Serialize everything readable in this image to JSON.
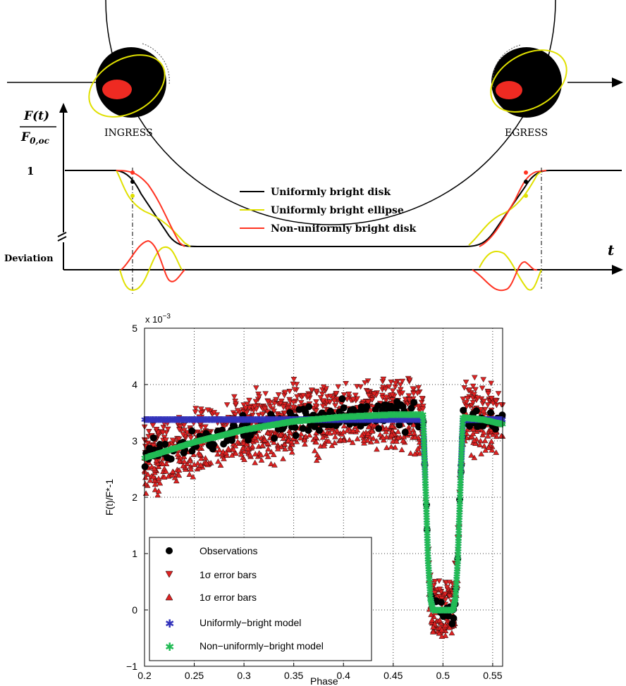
{
  "top_figure": {
    "y_label_numerator": "F(t)",
    "y_label_denominator": "F",
    "y_label_denominator_sub": "0,oc",
    "y_tick_one": "1",
    "deviation_label": "Deviation",
    "x_axis_label": "t",
    "ingress_label": "INGRESS",
    "egress_label": "EGRESS",
    "legend": [
      {
        "label": "Uniformly bright disk",
        "color": "#000000"
      },
      {
        "label": "Uniformly bright ellipse",
        "color": "#e0e000"
      },
      {
        "label": "Non-uniformly bright disk",
        "color": "#ff3322"
      }
    ]
  },
  "chart_data": {
    "type": "scatter",
    "xlabel": "Phase",
    "ylabel": "F(t)/F*-1",
    "y_multiplier": "x 10",
    "y_multiplier_exp": "−3",
    "xlim": [
      0.2,
      0.56
    ],
    "ylim": [
      -1,
      5
    ],
    "x_ticks": [
      "0.2",
      "0.25",
      "0.3",
      "0.35",
      "0.4",
      "0.45",
      "0.5",
      "0.55"
    ],
    "y_ticks": [
      "−1",
      "0",
      "1",
      "2",
      "3",
      "4",
      "5"
    ],
    "grid": true,
    "legend_position": "bottom-left",
    "legend": [
      {
        "label": "Observations",
        "marker": "circle",
        "color": "#000000"
      },
      {
        "label": "1σ error bars",
        "marker": "triangle-down",
        "color": "#dd2222"
      },
      {
        "label": "1σ error bars",
        "marker": "triangle-up",
        "color": "#dd2222"
      },
      {
        "label": "Uniformly−bright model",
        "marker": "asterisk",
        "color": "#3333bb"
      },
      {
        "label": "Non−uniformly−bright model",
        "marker": "asterisk",
        "color": "#22bb55"
      }
    ],
    "series": [
      {
        "name": "Uniformly−bright model",
        "x": [
          0.2,
          0.25,
          0.3,
          0.35,
          0.4,
          0.45,
          0.48,
          0.4825,
          0.485,
          0.4875,
          0.49,
          0.51,
          0.5125,
          0.515,
          0.5175,
          0.52,
          0.56
        ],
        "y": [
          3.38,
          3.38,
          3.38,
          3.38,
          3.38,
          3.38,
          3.38,
          2.2,
          0.9,
          0.2,
          0.0,
          0.0,
          0.2,
          0.9,
          2.2,
          3.38,
          3.38
        ]
      },
      {
        "name": "Non−uniformly−bright model",
        "x": [
          0.2,
          0.25,
          0.3,
          0.35,
          0.4,
          0.45,
          0.48,
          0.4825,
          0.485,
          0.4875,
          0.49,
          0.51,
          0.5125,
          0.515,
          0.5175,
          0.52,
          0.54,
          0.56
        ],
        "y": [
          2.7,
          2.98,
          3.2,
          3.35,
          3.43,
          3.47,
          3.47,
          2.2,
          0.9,
          0.2,
          0.0,
          0.0,
          0.2,
          0.9,
          2.2,
          3.42,
          3.38,
          3.3
        ]
      }
    ]
  }
}
